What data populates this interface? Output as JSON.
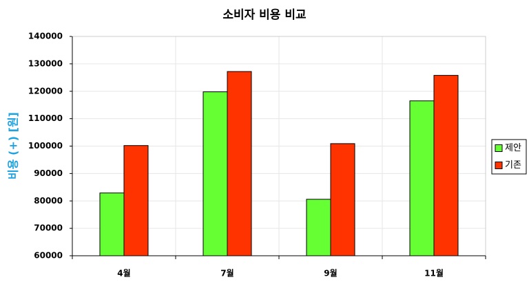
{
  "chart_data": {
    "type": "bar",
    "title": "소비자 비용 비교",
    "y_label": "비용 (+) [원]",
    "categories": [
      "4월",
      "7월",
      "9월",
      "11월"
    ],
    "series": [
      {
        "name": "제안",
        "color": "#66ff33",
        "values": [
          82900,
          119800,
          80600,
          116500
        ]
      },
      {
        "name": "기존",
        "color": "#ff3300",
        "values": [
          100200,
          127200,
          100900,
          125800
        ]
      }
    ],
    "ylim": [
      60000,
      140000
    ],
    "yticks": [
      60000,
      70000,
      80000,
      90000,
      100000,
      110000,
      120000,
      130000,
      140000
    ],
    "grid": true,
    "legend": "right"
  }
}
